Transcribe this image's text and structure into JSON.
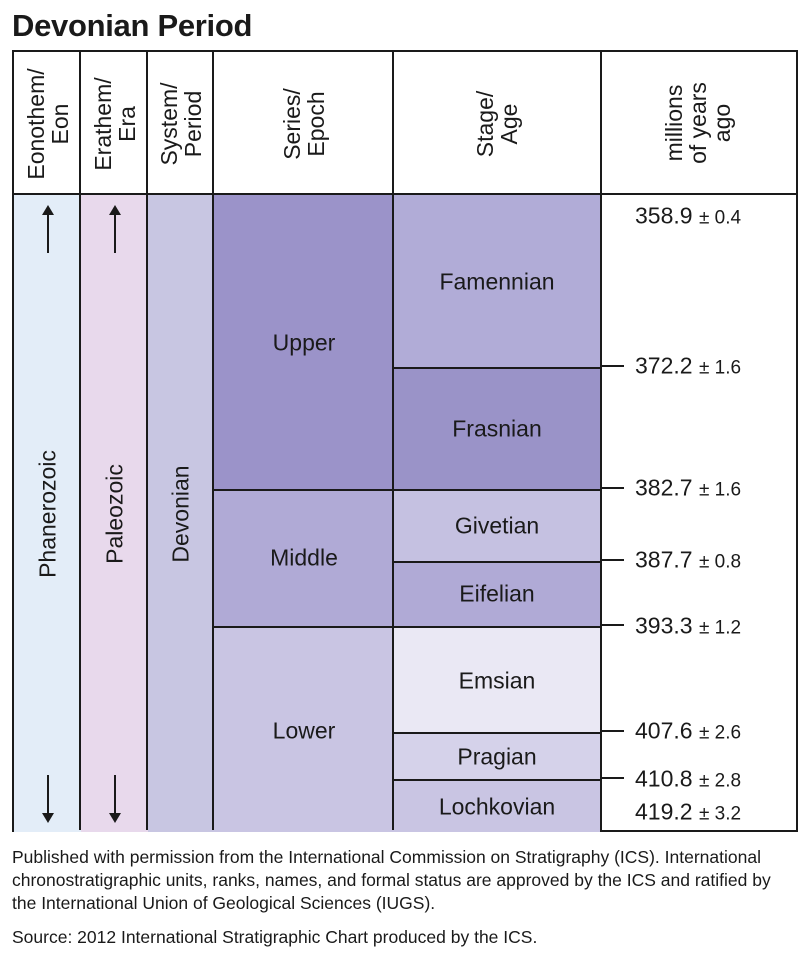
{
  "title": "Devonian Period",
  "headers": {
    "eon": "Eonothem/\nEon",
    "era": "Erathem/\nEra",
    "period": "System/\nPeriod",
    "epoch": "Series/\nEpoch",
    "age": "Stage/\nAge",
    "mya": "millions\nof years\nago"
  },
  "eon": "Phanerozoic",
  "era": "Paleozoic",
  "period": "Devonian",
  "epochs": [
    {
      "name": "Upper"
    },
    {
      "name": "Middle"
    },
    {
      "name": "Lower"
    }
  ],
  "stages": [
    {
      "name": "Famennian"
    },
    {
      "name": "Frasnian"
    },
    {
      "name": "Givetian"
    },
    {
      "name": "Eifelian"
    },
    {
      "name": "Emsian"
    },
    {
      "name": "Pragian"
    },
    {
      "name": "Lochkovian"
    }
  ],
  "ages": [
    {
      "value": "358.9",
      "error": "± 0.4"
    },
    {
      "value": "372.2",
      "error": "± 1.6"
    },
    {
      "value": "382.7",
      "error": "± 1.6"
    },
    {
      "value": "387.7",
      "error": "± 0.8"
    },
    {
      "value": "393.3",
      "error": "± 1.2"
    },
    {
      "value": "407.6",
      "error": "± 2.6"
    },
    {
      "value": "410.8",
      "error": "± 2.8"
    },
    {
      "value": "419.2",
      "error": "± 3.2"
    }
  ],
  "footnote": {
    "permission": "Published with permission from the International Commission on Stratigraphy (ICS). International chronostratigraphic units, ranks, names, and formal status are approved by the ICS and ratified by the International Union of Geological Sciences (IUGS).",
    "source": "Source: 2012 International Stratigraphic Chart produced by the ICS."
  },
  "colors": {
    "eon": "#e3edf8",
    "era": "#e8d9ec",
    "period": "#c8c6e2",
    "upper": "#9b93c9",
    "middle": "#b0aad6",
    "lower": "#c9c5e3",
    "famennian": "#b1acd7",
    "frasnian": "#9a93c8",
    "givetian": "#c5c1e1",
    "eifelian": "#b0aad6",
    "emsian": "#eae8f4",
    "pragian": "#d5d2ea",
    "lochkovian": "#c9c5e3"
  }
}
